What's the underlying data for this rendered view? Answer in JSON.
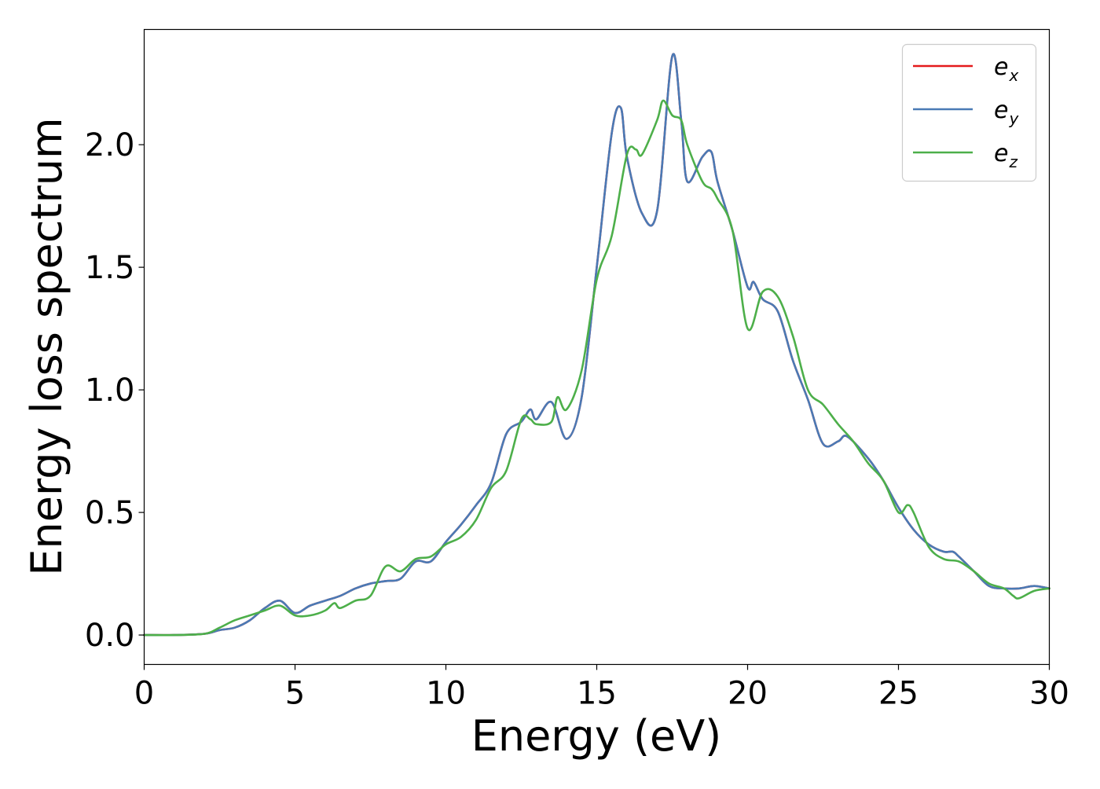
{
  "chart_data": {
    "type": "line",
    "xlabel": "Energy (eV)",
    "ylabel": "Energy loss spectrum",
    "xlim": [
      0,
      30
    ],
    "ylim": [
      -0.12,
      2.47
    ],
    "xticks": [
      0,
      5,
      10,
      15,
      20,
      25,
      30
    ],
    "xtick_labels": [
      "0",
      "5",
      "10",
      "15",
      "20",
      "25",
      "30"
    ],
    "yticks": [
      0.0,
      0.5,
      1.0,
      1.5,
      2.0
    ],
    "ytick_labels": [
      "0.0",
      "0.5",
      "1.0",
      "1.5",
      "2.0"
    ],
    "grid": false,
    "legend_position": "top-right",
    "series": [
      {
        "name": "e_x",
        "label_main": "e",
        "label_sub": "x",
        "color": "#e41a1c",
        "x": [
          0,
          1,
          2,
          2.5,
          3,
          3.5,
          4,
          4.5,
          5,
          5.5,
          6,
          6.5,
          7,
          7.5,
          8,
          8.5,
          9,
          9.5,
          10,
          10.5,
          11,
          11.5,
          12,
          12.5,
          12.8,
          13,
          13.5,
          14,
          14.5,
          15,
          15.5,
          15.8,
          16,
          16.5,
          17,
          17.5,
          17.8,
          18,
          18.5,
          18.8,
          19,
          19.5,
          20,
          20.2,
          20.5,
          21,
          21.5,
          22,
          22.5,
          23,
          23.3,
          24,
          24.5,
          25,
          25.5,
          26,
          26.5,
          26.8,
          27,
          27.5,
          28,
          28.5,
          29,
          29.5,
          30
        ],
        "y": [
          0.0,
          0.0,
          0.005,
          0.02,
          0.03,
          0.06,
          0.11,
          0.14,
          0.09,
          0.12,
          0.14,
          0.16,
          0.19,
          0.21,
          0.22,
          0.23,
          0.3,
          0.3,
          0.38,
          0.45,
          0.53,
          0.62,
          0.82,
          0.87,
          0.92,
          0.88,
          0.95,
          0.8,
          0.97,
          1.5,
          2.05,
          2.15,
          1.95,
          1.72,
          1.73,
          2.36,
          2.1,
          1.85,
          1.95,
          1.97,
          1.85,
          1.65,
          1.42,
          1.44,
          1.37,
          1.32,
          1.12,
          0.96,
          0.78,
          0.79,
          0.81,
          0.72,
          0.63,
          0.52,
          0.43,
          0.37,
          0.34,
          0.34,
          0.32,
          0.26,
          0.2,
          0.19,
          0.19,
          0.2,
          0.19
        ]
      },
      {
        "name": "e_y",
        "label_main": "e",
        "label_sub": "y",
        "color": "#4a7ab5",
        "x": [
          0,
          1,
          2,
          2.5,
          3,
          3.5,
          4,
          4.5,
          5,
          5.5,
          6,
          6.5,
          7,
          7.5,
          8,
          8.5,
          9,
          9.5,
          10,
          10.5,
          11,
          11.5,
          12,
          12.5,
          12.8,
          13,
          13.5,
          14,
          14.5,
          15,
          15.5,
          15.8,
          16,
          16.5,
          17,
          17.5,
          17.8,
          18,
          18.5,
          18.8,
          19,
          19.5,
          20,
          20.2,
          20.5,
          21,
          21.5,
          22,
          22.5,
          23,
          23.3,
          24,
          24.5,
          25,
          25.5,
          26,
          26.5,
          26.8,
          27,
          27.5,
          28,
          28.5,
          29,
          29.5,
          30
        ],
        "y": [
          0.0,
          0.0,
          0.005,
          0.02,
          0.03,
          0.06,
          0.11,
          0.14,
          0.09,
          0.12,
          0.14,
          0.16,
          0.19,
          0.21,
          0.22,
          0.23,
          0.3,
          0.3,
          0.38,
          0.45,
          0.53,
          0.62,
          0.82,
          0.87,
          0.92,
          0.88,
          0.95,
          0.8,
          0.97,
          1.5,
          2.05,
          2.15,
          1.95,
          1.72,
          1.73,
          2.36,
          2.1,
          1.85,
          1.95,
          1.97,
          1.85,
          1.65,
          1.42,
          1.44,
          1.37,
          1.32,
          1.12,
          0.96,
          0.78,
          0.79,
          0.81,
          0.72,
          0.63,
          0.52,
          0.43,
          0.37,
          0.34,
          0.34,
          0.32,
          0.26,
          0.2,
          0.19,
          0.19,
          0.2,
          0.19
        ]
      },
      {
        "name": "e_z",
        "label_main": "e",
        "label_sub": "z",
        "color": "#4daf4a",
        "x": [
          0,
          1,
          2,
          2.5,
          3,
          3.5,
          4,
          4.5,
          5,
          5.5,
          6,
          6.3,
          6.5,
          7,
          7.5,
          8,
          8.5,
          9,
          9.5,
          10,
          10.5,
          11,
          11.5,
          12,
          12.5,
          12.8,
          13,
          13.5,
          13.7,
          14,
          14.5,
          15,
          15.5,
          16,
          16.3,
          16.5,
          17,
          17.2,
          17.5,
          17.8,
          18,
          18.5,
          18.8,
          19,
          19.5,
          20,
          20.5,
          21,
          21.5,
          22,
          22.5,
          23,
          23.5,
          24,
          24.5,
          25,
          25.3,
          25.5,
          26,
          26.5,
          27,
          27.5,
          28,
          28.5,
          28.8,
          29,
          29.5,
          30
        ],
        "y": [
          0.0,
          0.0,
          0.005,
          0.03,
          0.06,
          0.08,
          0.1,
          0.12,
          0.08,
          0.08,
          0.1,
          0.13,
          0.11,
          0.14,
          0.16,
          0.28,
          0.26,
          0.31,
          0.32,
          0.37,
          0.4,
          0.47,
          0.6,
          0.67,
          0.88,
          0.88,
          0.86,
          0.87,
          0.97,
          0.92,
          1.08,
          1.45,
          1.63,
          1.96,
          1.98,
          1.96,
          2.1,
          2.18,
          2.12,
          2.1,
          2.0,
          1.85,
          1.82,
          1.78,
          1.65,
          1.25,
          1.4,
          1.38,
          1.22,
          1.0,
          0.94,
          0.86,
          0.79,
          0.7,
          0.63,
          0.5,
          0.53,
          0.5,
          0.36,
          0.31,
          0.3,
          0.26,
          0.21,
          0.19,
          0.16,
          0.15,
          0.18,
          0.19
        ]
      }
    ]
  }
}
